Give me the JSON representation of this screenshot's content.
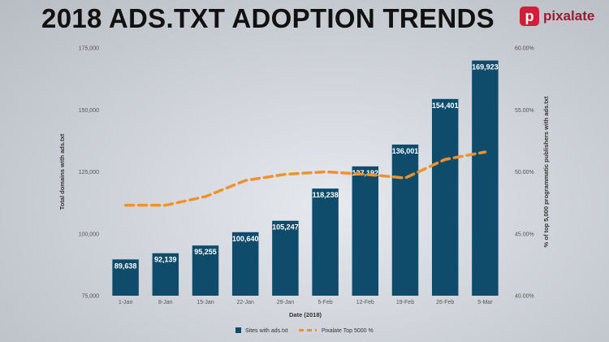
{
  "title": "2018 ADS.TXT ADOPTION TRENDS",
  "brand": {
    "mark": "p",
    "name": "pixalate",
    "color": "#d11f3a"
  },
  "chart_data": {
    "type": "bar",
    "categories": [
      "1-Jan",
      "8-Jan",
      "15-Jan",
      "22-Jan",
      "29-Jan",
      "5-Feb",
      "12-Feb",
      "19-Feb",
      "26-Feb",
      "5-Mar"
    ],
    "series": [
      {
        "name": "Sites with ads.txt",
        "type": "bar",
        "axis": "left",
        "color": "#0f4c6b",
        "values": [
          89638,
          92139,
          95255,
          100640,
          105247,
          118238,
          127192,
          136001,
          154401,
          169923
        ],
        "labels": [
          "89,638",
          "92,139",
          "95,255",
          "100,640",
          "105,247",
          "118,238",
          "127,192",
          "136,001",
          "154,401",
          "169,923"
        ]
      },
      {
        "name": "Pixalate Top 5000 %",
        "type": "line",
        "style": "dashed",
        "axis": "right",
        "color": "#f0922b",
        "values": [
          47.3,
          47.3,
          48.0,
          49.3,
          49.8,
          50.0,
          49.8,
          49.5,
          51.0,
          51.6
        ]
      }
    ],
    "xlabel": "Date (2018)",
    "ylabel": "Total domains with ads.txt",
    "y2label": "% of top 5,000 programmatic publishers with ads.txt",
    "ylim": [
      75000,
      175000
    ],
    "yticks": [
      "75,000",
      "100,000",
      "125,000",
      "150,000",
      "175,000"
    ],
    "y2lim": [
      40,
      60
    ],
    "y2ticks": [
      "40.00%",
      "45.00%",
      "50.00%",
      "55.00%",
      "60.00%"
    ],
    "legend": "bottom-center",
    "grid": false
  }
}
